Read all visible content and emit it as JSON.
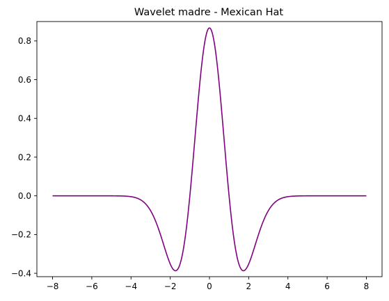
{
  "chart_data": {
    "type": "line",
    "title": "Wavelet madre - Mexican Hat",
    "xlabel": "",
    "ylabel": "",
    "xlim": [
      -8.8,
      8.8
    ],
    "ylim": [
      -0.4175,
      0.9
    ],
    "x_ticks": [
      -8,
      -6,
      -4,
      -2,
      0,
      2,
      4,
      6,
      8
    ],
    "y_ticks": [
      -0.4,
      -0.2,
      0.0,
      0.2,
      0.4,
      0.6,
      0.8
    ],
    "y_tick_labels": [
      "−0.4",
      "−0.2",
      "0.0",
      "0.2",
      "0.4",
      "0.6",
      "0.8"
    ],
    "x_tick_labels": [
      "−8",
      "−6",
      "−4",
      "−2",
      "0",
      "2",
      "4",
      "6",
      "8"
    ],
    "grid": false,
    "legend": "none",
    "series": [
      {
        "color": "#800080",
        "x": [
          -8,
          -7,
          -6,
          -5,
          -4.5,
          -4,
          -3.5,
          -3,
          -2.5,
          -2,
          -1.732,
          -1.5,
          -1,
          -0.5,
          0,
          0.5,
          1,
          1.5,
          1.732,
          2,
          2.5,
          3,
          3.5,
          4,
          4.5,
          5,
          6,
          7,
          8
        ],
        "y": [
          0.0,
          0.0,
          0.0,
          -0.001,
          -0.007,
          -0.029,
          -0.093,
          -0.194,
          -0.345,
          -0.351,
          -0.387,
          -0.352,
          0.0,
          0.65,
          0.867,
          0.65,
          0.0,
          -0.352,
          -0.387,
          -0.351,
          -0.345,
          -0.194,
          -0.093,
          -0.029,
          -0.007,
          -0.001,
          0.0,
          0.0,
          0.0
        ]
      }
    ]
  }
}
